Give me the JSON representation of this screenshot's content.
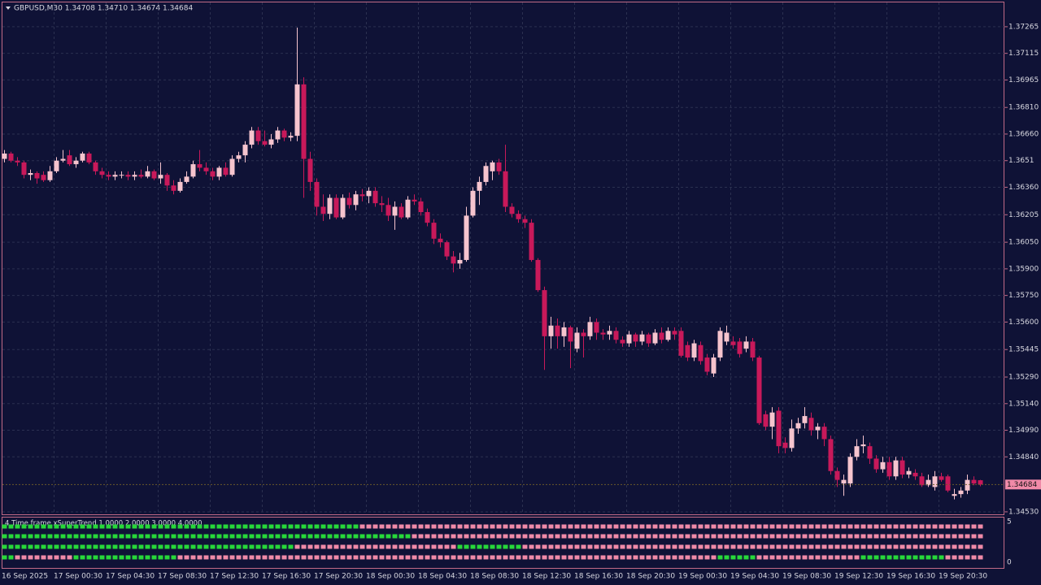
{
  "chart_data": {
    "type": "candlestick",
    "header": "GBPUSD,M30  1.34708 1.34710 1.34674 1.34684",
    "up_color": "#f6c4ce",
    "down_color": "#c8195a",
    "ylim": [
      1.34516,
      1.37402
    ],
    "yticks": [
      1.37265,
      1.37115,
      1.36965,
      {
        "value": 1.3681,
        "label": "1.36810"
      },
      {
        "value": 1.3666,
        "label": "1.36660"
      },
      1.3651,
      {
        "value": 1.3636,
        "label": "1.36360"
      },
      1.36205,
      {
        "value": 1.3605,
        "label": "1.36050"
      },
      {
        "value": 1.359,
        "label": "1.35900"
      },
      {
        "value": 1.3575,
        "label": "1.35750"
      },
      {
        "value": 1.356,
        "label": "1.35600"
      },
      1.35445,
      {
        "value": 1.3529,
        "label": "1.35290"
      },
      {
        "value": 1.3514,
        "label": "1.35140"
      },
      {
        "value": 1.3499,
        "label": "1.34990"
      },
      {
        "value": 1.3484,
        "label": "1.34840"
      },
      {
        "value": 1.3453,
        "label": "1.34530"
      }
    ],
    "grid": true,
    "bid": 1.34684,
    "xlabels": [
      "16 Sep 2025",
      "17 Sep 00:30",
      "17 Sep 04:30",
      "17 Sep 08:30",
      "17 Sep 12:30",
      "17 Sep 16:30",
      "17 Sep 20:30",
      "18 Sep 00:30",
      "18 Sep 04:30",
      "18 Sep 08:30",
      "18 Sep 12:30",
      "18 Sep 16:30",
      "18 Sep 20:30",
      "19 Sep 00:30",
      "19 Sep 04:30",
      "19 Sep 08:30",
      "19 Sep 12:30",
      "19 Sep 16:30",
      "19 Sep 20:30"
    ],
    "ohlc": [
      [
        1.3652,
        1.3657,
        1.365,
        1.3655
      ],
      [
        1.3655,
        1.3656,
        1.365,
        1.3651
      ],
      [
        1.3651,
        1.3653,
        1.3648,
        1.365
      ],
      [
        1.365,
        1.3651,
        1.3641,
        1.3643
      ],
      [
        1.3643,
        1.3646,
        1.364,
        1.3644
      ],
      [
        1.3644,
        1.3645,
        1.3638,
        1.3641
      ],
      [
        1.3643,
        1.3645,
        1.3639,
        1.364
      ],
      [
        1.364,
        1.3648,
        1.3639,
        1.3645
      ],
      [
        1.3645,
        1.3653,
        1.3644,
        1.3651
      ],
      [
        1.3651,
        1.3657,
        1.365,
        1.3652
      ],
      [
        1.3654,
        1.3657,
        1.3648,
        1.3649
      ],
      [
        1.3649,
        1.3653,
        1.3647,
        1.3651
      ],
      [
        1.3651,
        1.3656,
        1.365,
        1.3655
      ],
      [
        1.3655,
        1.3656,
        1.3649,
        1.365
      ],
      [
        1.365,
        1.3651,
        1.3643,
        1.3645
      ],
      [
        1.3645,
        1.3647,
        1.3641,
        1.3643
      ],
      [
        1.3643,
        1.3645,
        1.364,
        1.3642
      ],
      [
        1.3642,
        1.3645,
        1.364,
        1.3643
      ],
      [
        1.3643,
        1.3645,
        1.3641,
        1.3643
      ],
      [
        1.3643,
        1.3645,
        1.364,
        1.3642
      ],
      [
        1.3642,
        1.3645,
        1.364,
        1.3643
      ],
      [
        1.3643,
        1.3646,
        1.3641,
        1.3642
      ],
      [
        1.3642,
        1.3648,
        1.3641,
        1.3645
      ],
      [
        1.3645,
        1.3646,
        1.364,
        1.3641
      ],
      [
        1.3641,
        1.365,
        1.3638,
        1.3643
      ],
      [
        1.3643,
        1.3644,
        1.3634,
        1.3637
      ],
      [
        1.3637,
        1.364,
        1.3632,
        1.3634
      ],
      [
        1.3634,
        1.3641,
        1.3633,
        1.3639
      ],
      [
        1.3639,
        1.3645,
        1.3638,
        1.3642
      ],
      [
        1.3642,
        1.3651,
        1.3641,
        1.3649
      ],
      [
        1.3649,
        1.3657,
        1.3645,
        1.3647
      ],
      [
        1.3647,
        1.365,
        1.3643,
        1.3645
      ],
      [
        1.3645,
        1.3647,
        1.364,
        1.3642
      ],
      [
        1.3642,
        1.3648,
        1.364,
        1.3647
      ],
      [
        1.3647,
        1.365,
        1.3642,
        1.3643
      ],
      [
        1.3643,
        1.3654,
        1.3642,
        1.3652
      ],
      [
        1.3652,
        1.3656,
        1.365,
        1.3654
      ],
      [
        1.3654,
        1.3662,
        1.365,
        1.366
      ],
      [
        1.366,
        1.367,
        1.3658,
        1.3668
      ],
      [
        1.3668,
        1.367,
        1.366,
        1.3662
      ],
      [
        1.3662,
        1.3668,
        1.3659,
        1.366
      ],
      [
        1.366,
        1.3666,
        1.3658,
        1.3663
      ],
      [
        1.3663,
        1.367,
        1.3661,
        1.3668
      ],
      [
        1.3668,
        1.3669,
        1.3662,
        1.3664
      ],
      [
        1.3664,
        1.3667,
        1.3662,
        1.3665
      ],
      [
        1.3665,
        1.3726,
        1.3662,
        1.3694
      ],
      [
        1.3694,
        1.3698,
        1.363,
        1.3652
      ],
      [
        1.3652,
        1.3656,
        1.3634,
        1.3639
      ],
      [
        1.3639,
        1.3641,
        1.362,
        1.3625
      ],
      [
        1.3625,
        1.3632,
        1.3617,
        1.3621
      ],
      [
        1.3621,
        1.3632,
        1.3618,
        1.363
      ],
      [
        1.363,
        1.3632,
        1.3618,
        1.3619
      ],
      [
        1.3619,
        1.3632,
        1.3618,
        1.363
      ],
      [
        1.363,
        1.3633,
        1.3624,
        1.3626
      ],
      [
        1.3626,
        1.3634,
        1.3623,
        1.3632
      ],
      [
        1.3632,
        1.3635,
        1.3628,
        1.3631
      ],
      [
        1.3631,
        1.3636,
        1.3627,
        1.3634
      ],
      [
        1.3634,
        1.3636,
        1.3625,
        1.3627
      ],
      [
        1.3627,
        1.3631,
        1.3622,
        1.3626
      ],
      [
        1.3626,
        1.363,
        1.3617,
        1.362
      ],
      [
        1.362,
        1.3628,
        1.3612,
        1.3625
      ],
      [
        1.3625,
        1.3627,
        1.3618,
        1.3619
      ],
      [
        1.3619,
        1.3631,
        1.3618,
        1.3629
      ],
      [
        1.3629,
        1.3632,
        1.3626,
        1.3628
      ],
      [
        1.3628,
        1.363,
        1.362,
        1.3622
      ],
      [
        1.3622,
        1.3624,
        1.3614,
        1.3616
      ],
      [
        1.3616,
        1.3618,
        1.3604,
        1.3607
      ],
      [
        1.3607,
        1.361,
        1.3602,
        1.3605
      ],
      [
        1.3605,
        1.3606,
        1.3595,
        1.3597
      ],
      [
        1.3597,
        1.36,
        1.3588,
        1.3593
      ],
      [
        1.3593,
        1.3599,
        1.359,
        1.3595
      ],
      [
        1.3595,
        1.3625,
        1.3594,
        1.362
      ],
      [
        1.362,
        1.3636,
        1.3619,
        1.3634
      ],
      [
        1.3634,
        1.3642,
        1.3626,
        1.3639
      ],
      [
        1.3639,
        1.365,
        1.3637,
        1.3648
      ],
      [
        1.3645,
        1.3651,
        1.364,
        1.365
      ],
      [
        1.365,
        1.3652,
        1.3643,
        1.3645
      ],
      [
        1.3645,
        1.366,
        1.3622,
        1.3625
      ],
      [
        1.3625,
        1.3627,
        1.3619,
        1.3621
      ],
      [
        1.3621,
        1.3623,
        1.3616,
        1.3618
      ],
      [
        1.3618,
        1.362,
        1.3613,
        1.3616
      ],
      [
        1.3616,
        1.3618,
        1.3594,
        1.3595
      ],
      [
        1.3595,
        1.3596,
        1.3577,
        1.3578
      ],
      [
        1.3578,
        1.358,
        1.3533,
        1.3552
      ],
      [
        1.3552,
        1.3563,
        1.3545,
        1.3558
      ],
      [
        1.3558,
        1.3562,
        1.3545,
        1.3552
      ],
      [
        1.3552,
        1.356,
        1.3546,
        1.3557
      ],
      [
        1.3557,
        1.3558,
        1.3534,
        1.3549
      ],
      [
        1.3545,
        1.3557,
        1.3543,
        1.3554
      ],
      [
        1.3554,
        1.3556,
        1.354,
        1.3552
      ],
      [
        1.3552,
        1.3563,
        1.355,
        1.356
      ],
      [
        1.356,
        1.3562,
        1.355,
        1.3554
      ],
      [
        1.3554,
        1.3556,
        1.355,
        1.3553
      ],
      [
        1.3553,
        1.3558,
        1.355,
        1.3555
      ],
      [
        1.3555,
        1.3557,
        1.3548,
        1.355
      ],
      [
        1.355,
        1.3552,
        1.3546,
        1.3548
      ],
      [
        1.3548,
        1.3555,
        1.3546,
        1.3553
      ],
      [
        1.3553,
        1.3554,
        1.3546,
        1.3549
      ],
      [
        1.3549,
        1.3555,
        1.3547,
        1.3553
      ],
      [
        1.3553,
        1.3554,
        1.3546,
        1.3548
      ],
      [
        1.3548,
        1.3556,
        1.3547,
        1.3554
      ],
      [
        1.3554,
        1.3557,
        1.3548,
        1.355
      ],
      [
        1.355,
        1.3557,
        1.3549,
        1.3555
      ],
      [
        1.3555,
        1.3557,
        1.355,
        1.3553
      ],
      [
        1.3555,
        1.3557,
        1.354,
        1.3541
      ],
      [
        1.3547,
        1.3549,
        1.3538,
        1.354
      ],
      [
        1.354,
        1.355,
        1.3538,
        1.3548
      ],
      [
        1.3547,
        1.3549,
        1.3536,
        1.3538
      ],
      [
        1.354,
        1.3542,
        1.353,
        1.3532
      ],
      [
        1.3531,
        1.3542,
        1.3529,
        1.354
      ],
      [
        1.354,
        1.3557,
        1.3538,
        1.3555
      ],
      [
        1.3549,
        1.3558,
        1.3547,
        1.3554
      ],
      [
        1.3549,
        1.3552,
        1.3545,
        1.3547
      ],
      [
        1.3549,
        1.3551,
        1.354,
        1.3542
      ],
      [
        1.3545,
        1.3552,
        1.3543,
        1.3549
      ],
      [
        1.3549,
        1.3551,
        1.3538,
        1.354
      ],
      [
        1.354,
        1.3541,
        1.3502,
        1.3503
      ],
      [
        1.3508,
        1.351,
        1.3499,
        1.3501
      ],
      [
        1.3501,
        1.3512,
        1.3494,
        1.3509
      ],
      [
        1.351,
        1.3512,
        1.3486,
        1.349
      ],
      [
        1.3492,
        1.3495,
        1.3486,
        1.3489
      ],
      [
        1.3489,
        1.3505,
        1.3487,
        1.35
      ],
      [
        1.35,
        1.3506,
        1.3497,
        1.3503
      ],
      [
        1.3503,
        1.3512,
        1.35,
        1.3507
      ],
      [
        1.3506,
        1.3509,
        1.3496,
        1.3499
      ],
      [
        1.3499,
        1.3503,
        1.3494,
        1.3501
      ],
      [
        1.3501,
        1.3503,
        1.349,
        1.3494
      ],
      [
        1.3494,
        1.3496,
        1.3474,
        1.3476
      ],
      [
        1.3476,
        1.3478,
        1.3467,
        1.3471
      ],
      [
        1.3469,
        1.3474,
        1.3462,
        1.3471
      ],
      [
        1.3469,
        1.3486,
        1.3467,
        1.3484
      ],
      [
        1.3484,
        1.3494,
        1.3482,
        1.349
      ],
      [
        1.349,
        1.3496,
        1.3486,
        1.3491
      ],
      [
        1.349,
        1.3492,
        1.348,
        1.3483
      ],
      [
        1.3483,
        1.3485,
        1.3475,
        1.3477
      ],
      [
        1.3477,
        1.3484,
        1.3475,
        1.3481
      ],
      [
        1.3481,
        1.3484,
        1.3471,
        1.3473
      ],
      [
        1.3473,
        1.3484,
        1.3471,
        1.3482
      ],
      [
        1.3482,
        1.3484,
        1.3472,
        1.3474
      ],
      [
        1.3474,
        1.3478,
        1.3472,
        1.3476
      ],
      [
        1.3475,
        1.3477,
        1.3471,
        1.3473
      ],
      [
        1.3473,
        1.3475,
        1.3467,
        1.3468
      ],
      [
        1.3468,
        1.3474,
        1.3467,
        1.3471
      ],
      [
        1.3467,
        1.3476,
        1.3465,
        1.3473
      ],
      [
        1.3473,
        1.3475,
        1.347,
        1.3471
      ],
      [
        1.3473,
        1.3474,
        1.3464,
        1.3465
      ],
      [
        1.3462,
        1.3466,
        1.346,
        1.3463
      ],
      [
        1.3463,
        1.3467,
        1.3461,
        1.3465
      ],
      [
        1.3465,
        1.3474,
        1.3463,
        1.3471
      ],
      [
        1.3471,
        1.3473,
        1.3468,
        1.3469
      ],
      [
        1.34708,
        1.3471,
        1.34674,
        1.34684
      ]
    ],
    "indicator": {
      "title": "4 Time frame xSuperTrend 1.0000 2.0000 3.0000 4.0000",
      "yticks": [
        5,
        0
      ],
      "rows": [
        [
          {
            "color": "#27d83a",
            "count": 55
          },
          {
            "color": "#f08aa8",
            "count": 96
          }
        ],
        [
          {
            "color": "#27d83a",
            "count": 63
          },
          {
            "color": "#f08aa8",
            "count": 88
          }
        ],
        [
          {
            "color": "#27d83a",
            "count": 45
          },
          {
            "color": "#f08aa8",
            "count": 25
          },
          {
            "color": "#27d83a",
            "count": 10
          },
          {
            "color": "#f08aa8",
            "count": 71
          }
        ],
        [
          {
            "color": "#27d83a",
            "count": 2
          },
          {
            "color": "#f08aa8",
            "count": 9
          },
          {
            "color": "#27d83a",
            "count": 16
          },
          {
            "color": "#f08aa8",
            "count": 83
          },
          {
            "color": "#27d83a",
            "count": 6
          },
          {
            "color": "#f08aa8",
            "count": 16
          },
          {
            "color": "#27d83a",
            "count": 13
          },
          {
            "color": "#f08aa8",
            "count": 6
          }
        ]
      ]
    }
  }
}
